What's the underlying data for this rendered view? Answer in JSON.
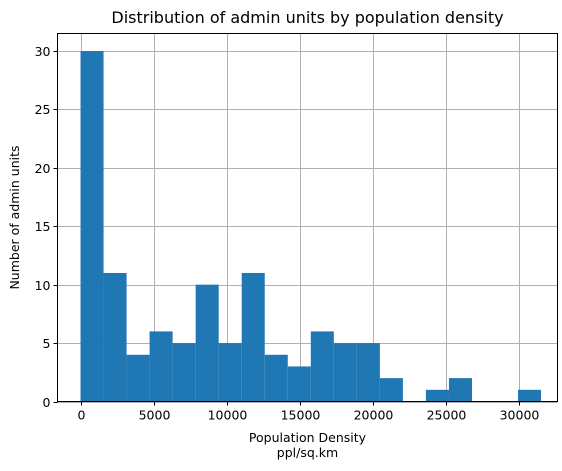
{
  "chart_data": {
    "type": "bar",
    "title": "Distribution of admin units by population density",
    "xlabel": "Population Density",
    "xlabel_unit": "ppl/sq.km",
    "ylabel": "Number of admin units",
    "xlim": [
      -1575,
      32625
    ],
    "ylim": [
      0,
      31.5
    ],
    "x_ticks": [
      0,
      5000,
      10000,
      15000,
      20000,
      25000,
      30000
    ],
    "y_ticks": [
      0,
      5,
      10,
      15,
      20,
      25,
      30
    ],
    "grid": true,
    "bin_edges": [
      0,
      1575,
      3150,
      4725,
      6300,
      7875,
      9450,
      11025,
      12600,
      14175,
      15750,
      17325,
      18900,
      20475,
      22050,
      23625,
      25200,
      26775,
      28350,
      29925,
      31500
    ],
    "values": [
      30,
      11,
      4,
      6,
      5,
      10,
      5,
      11,
      4,
      3,
      6,
      5,
      5,
      2,
      0,
      1,
      2,
      0,
      0,
      1
    ],
    "bar_color": "#1f77b4",
    "grid_color": "#b0b0b0"
  }
}
